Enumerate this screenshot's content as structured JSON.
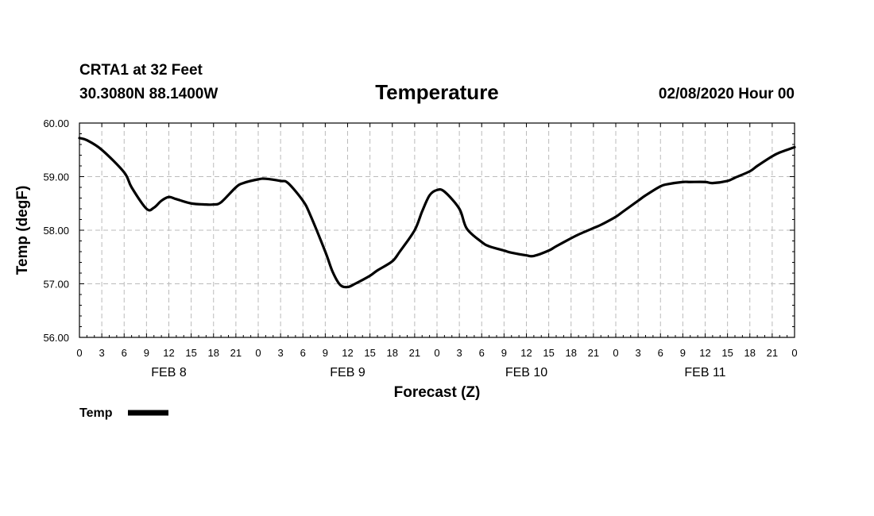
{
  "header": {
    "station": "CRTA1 at 32 Feet",
    "location": "30.3080N 88.1400W",
    "title": "Temperature",
    "datetime": "02/08/2020 Hour 00"
  },
  "colors": {
    "line": "#000000",
    "grid": "#bbbbbb",
    "background": "#ffffff"
  },
  "chart_data": {
    "type": "line",
    "title": "Temperature",
    "xlabel": "Forecast (Z)",
    "ylabel": "Temp (degF)",
    "x_unit": "hours from 02/08/2020 00Z",
    "xlim": [
      0,
      96
    ],
    "ylim": [
      56,
      60
    ],
    "yticks": [
      "56.00",
      "57.00",
      "58.00",
      "59.00",
      "60.00"
    ],
    "yvals": [
      56,
      57,
      58,
      59,
      60
    ],
    "xticks": [
      "0",
      "3",
      "6",
      "9",
      "12",
      "15",
      "18",
      "21",
      "0",
      "3",
      "6",
      "9",
      "12",
      "15",
      "18",
      "21",
      "0",
      "3",
      "6",
      "9",
      "12",
      "15",
      "18",
      "21",
      "0",
      "3",
      "6",
      "9",
      "12",
      "15",
      "18",
      "21",
      "0"
    ],
    "day_labels": [
      {
        "label": "FEB 8",
        "hour": 12
      },
      {
        "label": "FEB 9",
        "hour": 36
      },
      {
        "label": "FEB 10",
        "hour": 60
      },
      {
        "label": "FEB 11",
        "hour": 84
      }
    ],
    "grid": true,
    "legend_position": "bottom-left",
    "series": [
      {
        "name": "Temp",
        "x": [
          0,
          1,
          3,
          6,
          7,
          9,
          10,
          11,
          12,
          13,
          15,
          17,
          18,
          19,
          21,
          22,
          24,
          25,
          27,
          28,
          30,
          31,
          33,
          34,
          35,
          36,
          37,
          39,
          40,
          42,
          43,
          45,
          46,
          47,
          48,
          49,
          51,
          52,
          54,
          55,
          57,
          58,
          60,
          61,
          63,
          64,
          66,
          67,
          69,
          70,
          72,
          73,
          75,
          76,
          78,
          79,
          81,
          82,
          84,
          85,
          87,
          88,
          90,
          91,
          93,
          94,
          96
        ],
        "y": [
          59.72,
          59.68,
          59.5,
          59.08,
          58.8,
          58.4,
          58.42,
          58.55,
          58.62,
          58.58,
          58.5,
          58.48,
          58.48,
          58.52,
          58.8,
          58.88,
          58.95,
          58.96,
          58.92,
          58.88,
          58.55,
          58.28,
          57.6,
          57.22,
          56.98,
          56.94,
          57.0,
          57.15,
          57.25,
          57.42,
          57.6,
          58.0,
          58.35,
          58.65,
          58.75,
          58.72,
          58.4,
          58.03,
          57.78,
          57.7,
          57.62,
          57.58,
          57.53,
          57.52,
          57.62,
          57.7,
          57.85,
          57.92,
          58.04,
          58.1,
          58.25,
          58.35,
          58.55,
          58.65,
          58.82,
          58.86,
          58.9,
          58.9,
          58.9,
          58.88,
          58.92,
          58.98,
          59.1,
          59.2,
          59.38,
          59.45,
          59.55
        ]
      }
    ]
  }
}
